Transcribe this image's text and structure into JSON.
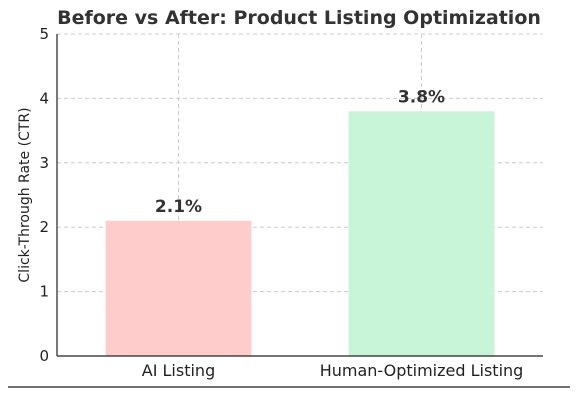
{
  "chart_data": {
    "type": "bar",
    "title": "Before vs After: Product Listing Optimization",
    "xlabel": "",
    "ylabel": "Click-Through Rate (CTR)",
    "ylim": [
      0,
      5
    ],
    "yticks": [
      0,
      1,
      2,
      3,
      4,
      5
    ],
    "grid": true,
    "categories": [
      "AI Listing",
      "Human-Optimized Listing"
    ],
    "values": [
      2.1,
      3.8
    ],
    "data_labels": [
      "2.1%",
      "3.8%"
    ],
    "colors": [
      "#ffcccc",
      "#c8f4d8"
    ]
  }
}
